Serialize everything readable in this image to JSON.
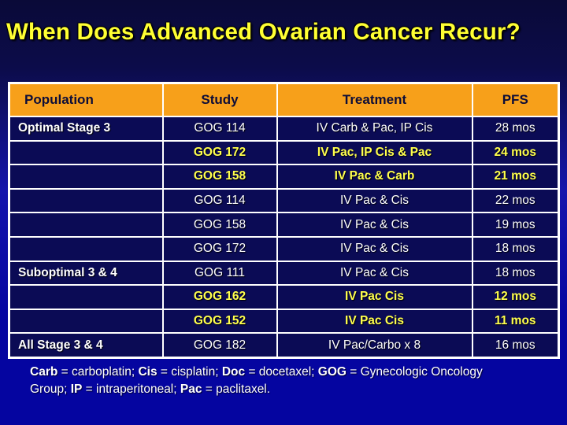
{
  "title": "When Does Advanced Ovarian Cancer Recur?",
  "table": {
    "headers": [
      "Population",
      "Study",
      "Treatment",
      "PFS"
    ],
    "rows": [
      {
        "population": "Optimal Stage 3",
        "study": "GOG 114",
        "treatment": "IV Carb & Pac, IP Cis",
        "pfs": "28 mos",
        "highlight": false
      },
      {
        "population": "",
        "study": "GOG 172",
        "treatment": "IV Pac, IP Cis & Pac",
        "pfs": "24 mos",
        "highlight": true
      },
      {
        "population": "",
        "study": "GOG 158",
        "treatment": "IV Pac & Carb",
        "pfs": "21 mos",
        "highlight": true
      },
      {
        "population": "",
        "study": "GOG 114",
        "treatment": "IV Pac & Cis",
        "pfs": "22 mos",
        "highlight": false
      },
      {
        "population": "",
        "study": "GOG 158",
        "treatment": "IV Pac & Cis",
        "pfs": "19 mos",
        "highlight": false
      },
      {
        "population": "",
        "study": "GOG 172",
        "treatment": "IV Pac & Cis",
        "pfs": "18 mos",
        "highlight": false
      },
      {
        "population": "Suboptimal 3 & 4",
        "study": "GOG 111",
        "treatment": "IV Pac & Cis",
        "pfs": "18 mos",
        "highlight": false
      },
      {
        "population": "",
        "study": "GOG 162",
        "treatment": "IV Pac Cis",
        "pfs": "12 mos",
        "highlight": true
      },
      {
        "population": "",
        "study": "GOG 152",
        "treatment": "IV Pac Cis",
        "pfs": "11 mos",
        "highlight": true
      },
      {
        "population": "All Stage 3 & 4",
        "study": "GOG 182",
        "treatment": "IV Pac/Carbo x 8",
        "pfs": "16 mos",
        "highlight": false
      }
    ]
  },
  "footnote": {
    "segments": [
      {
        "abbr": "Carb",
        "rest": " = carboplatin; "
      },
      {
        "abbr": "Cis",
        "rest": " = cisplatin; "
      },
      {
        "abbr": "Doc",
        "rest": " = docetaxel; "
      },
      {
        "abbr": "GOG",
        "rest": " = Gynecologic Oncology Group; "
      },
      {
        "abbr": "IP",
        "rest": " = intraperitoneal; "
      },
      {
        "abbr": "Pac",
        "rest": " = paclitaxel."
      }
    ]
  },
  "colors": {
    "background_top": "#0A0A38",
    "background_bottom": "#0505A0",
    "title_text": "#FFFF33",
    "header_bg": "#F7A01A",
    "header_text": "#0D0D38",
    "cell_bg": "#0B0B55",
    "body_text": "#FFFFFF",
    "highlight_text": "#FFFF4D",
    "border": "#FFFFFF"
  }
}
